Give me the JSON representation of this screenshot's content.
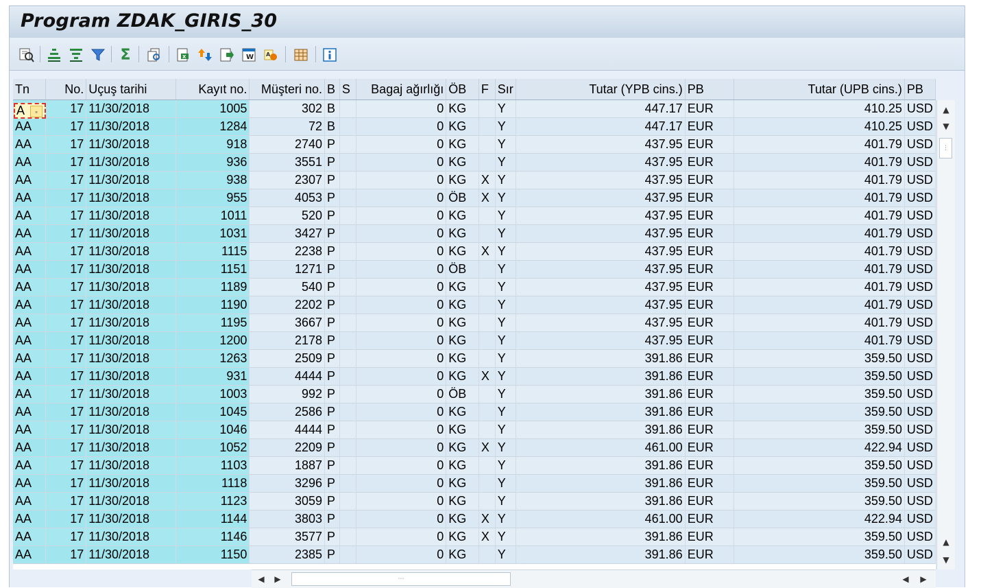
{
  "title": "Program ZDAK_GIRIS_30",
  "toolbar": {
    "icons": [
      "details-icon",
      "sort-ascending-icon",
      "sort-descending-icon",
      "filter-icon",
      "sum-icon",
      "subtotal-icon",
      "print-preview-icon",
      "export-excel-icon",
      "export-icon",
      "save-as-icon",
      "word-processing-icon",
      "abc-analysis-icon",
      "layout-icon",
      "info-icon"
    ]
  },
  "columns": [
    "Tn",
    "No.",
    "Uçuş tarihi",
    "Kayıt no.",
    "Müşteri no.",
    "B",
    "S",
    "Bagaj ağırlığı",
    "ÖB",
    "F",
    "Sır",
    "Tutar (YPB cins.)",
    "PB",
    "Tutar (UPB cins.)",
    "PB"
  ],
  "rows": [
    [
      "A",
      "17",
      "11/30/2018",
      "1005",
      "302",
      "B",
      "",
      "0",
      "KG",
      "",
      "Y",
      "447.17",
      "EUR",
      "410.25",
      "USD"
    ],
    [
      "AA",
      "17",
      "11/30/2018",
      "1284",
      "72",
      "B",
      "",
      "0",
      "KG",
      "",
      "Y",
      "447.17",
      "EUR",
      "410.25",
      "USD"
    ],
    [
      "AA",
      "17",
      "11/30/2018",
      "918",
      "2740",
      "P",
      "",
      "0",
      "KG",
      "",
      "Y",
      "437.95",
      "EUR",
      "401.79",
      "USD"
    ],
    [
      "AA",
      "17",
      "11/30/2018",
      "936",
      "3551",
      "P",
      "",
      "0",
      "KG",
      "",
      "Y",
      "437.95",
      "EUR",
      "401.79",
      "USD"
    ],
    [
      "AA",
      "17",
      "11/30/2018",
      "938",
      "2307",
      "P",
      "",
      "0",
      "KG",
      "X",
      "Y",
      "437.95",
      "EUR",
      "401.79",
      "USD"
    ],
    [
      "AA",
      "17",
      "11/30/2018",
      "955",
      "4053",
      "P",
      "",
      "0",
      "ÖB",
      "X",
      "Y",
      "437.95",
      "EUR",
      "401.79",
      "USD"
    ],
    [
      "AA",
      "17",
      "11/30/2018",
      "1011",
      "520",
      "P",
      "",
      "0",
      "KG",
      "",
      "Y",
      "437.95",
      "EUR",
      "401.79",
      "USD"
    ],
    [
      "AA",
      "17",
      "11/30/2018",
      "1031",
      "3427",
      "P",
      "",
      "0",
      "KG",
      "",
      "Y",
      "437.95",
      "EUR",
      "401.79",
      "USD"
    ],
    [
      "AA",
      "17",
      "11/30/2018",
      "1115",
      "2238",
      "P",
      "",
      "0",
      "KG",
      "X",
      "Y",
      "437.95",
      "EUR",
      "401.79",
      "USD"
    ],
    [
      "AA",
      "17",
      "11/30/2018",
      "1151",
      "1271",
      "P",
      "",
      "0",
      "ÖB",
      "",
      "Y",
      "437.95",
      "EUR",
      "401.79",
      "USD"
    ],
    [
      "AA",
      "17",
      "11/30/2018",
      "1189",
      "540",
      "P",
      "",
      "0",
      "KG",
      "",
      "Y",
      "437.95",
      "EUR",
      "401.79",
      "USD"
    ],
    [
      "AA",
      "17",
      "11/30/2018",
      "1190",
      "2202",
      "P",
      "",
      "0",
      "KG",
      "",
      "Y",
      "437.95",
      "EUR",
      "401.79",
      "USD"
    ],
    [
      "AA",
      "17",
      "11/30/2018",
      "1195",
      "3667",
      "P",
      "",
      "0",
      "KG",
      "",
      "Y",
      "437.95",
      "EUR",
      "401.79",
      "USD"
    ],
    [
      "AA",
      "17",
      "11/30/2018",
      "1200",
      "2178",
      "P",
      "",
      "0",
      "KG",
      "",
      "Y",
      "437.95",
      "EUR",
      "401.79",
      "USD"
    ],
    [
      "AA",
      "17",
      "11/30/2018",
      "1263",
      "2509",
      "P",
      "",
      "0",
      "KG",
      "",
      "Y",
      "391.86",
      "EUR",
      "359.50",
      "USD"
    ],
    [
      "AA",
      "17",
      "11/30/2018",
      "931",
      "4444",
      "P",
      "",
      "0",
      "KG",
      "X",
      "Y",
      "391.86",
      "EUR",
      "359.50",
      "USD"
    ],
    [
      "AA",
      "17",
      "11/30/2018",
      "1003",
      "992",
      "P",
      "",
      "0",
      "ÖB",
      "",
      "Y",
      "391.86",
      "EUR",
      "359.50",
      "USD"
    ],
    [
      "AA",
      "17",
      "11/30/2018",
      "1045",
      "2586",
      "P",
      "",
      "0",
      "KG",
      "",
      "Y",
      "391.86",
      "EUR",
      "359.50",
      "USD"
    ],
    [
      "AA",
      "17",
      "11/30/2018",
      "1046",
      "4444",
      "P",
      "",
      "0",
      "KG",
      "",
      "Y",
      "391.86",
      "EUR",
      "359.50",
      "USD"
    ],
    [
      "AA",
      "17",
      "11/30/2018",
      "1052",
      "2209",
      "P",
      "",
      "0",
      "KG",
      "X",
      "Y",
      "461.00",
      "EUR",
      "422.94",
      "USD"
    ],
    [
      "AA",
      "17",
      "11/30/2018",
      "1103",
      "1887",
      "P",
      "",
      "0",
      "KG",
      "",
      "Y",
      "391.86",
      "EUR",
      "359.50",
      "USD"
    ],
    [
      "AA",
      "17",
      "11/30/2018",
      "1118",
      "3296",
      "P",
      "",
      "0",
      "KG",
      "",
      "Y",
      "391.86",
      "EUR",
      "359.50",
      "USD"
    ],
    [
      "AA",
      "17",
      "11/30/2018",
      "1123",
      "3059",
      "P",
      "",
      "0",
      "KG",
      "",
      "Y",
      "391.86",
      "EUR",
      "359.50",
      "USD"
    ],
    [
      "AA",
      "17",
      "11/30/2018",
      "1144",
      "3803",
      "P",
      "",
      "0",
      "KG",
      "X",
      "Y",
      "461.00",
      "EUR",
      "422.94",
      "USD"
    ],
    [
      "AA",
      "17",
      "11/30/2018",
      "1146",
      "3577",
      "P",
      "",
      "0",
      "KG",
      "X",
      "Y",
      "391.86",
      "EUR",
      "359.50",
      "USD"
    ],
    [
      "AA",
      "17",
      "11/30/2018",
      "1150",
      "2385",
      "P",
      "",
      "0",
      "KG",
      "",
      "Y",
      "391.86",
      "EUR",
      "359.50",
      "USD"
    ]
  ],
  "colors": {
    "key_column_bg": "#a6e7f0",
    "row_bg": "#e2edf6",
    "header_bg": "#dce6f0"
  }
}
